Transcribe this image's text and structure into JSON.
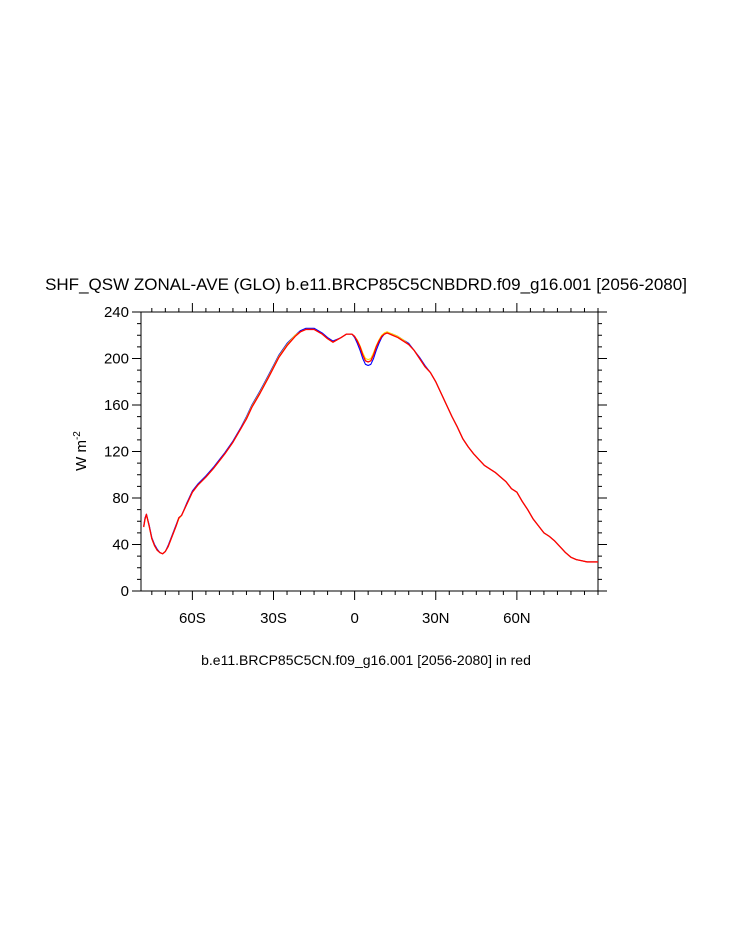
{
  "chart_data": {
    "type": "line",
    "title": "SHF_QSW ZONAL-AVE (GLO) b.e11.BRCP85C5CNBDRD.f09_g16.001 [2056-2080]",
    "ylabel": "W m",
    "ylabel_superscript": "-2",
    "caption": "b.e11.BRCP85C5CN.f09_g16.001 [2056-2080] in red",
    "xlim": [
      -79,
      90
    ],
    "ylim": [
      0,
      240
    ],
    "y_ticks": [
      0,
      40,
      80,
      120,
      160,
      200,
      240
    ],
    "y_tick_labels": [
      "0",
      "40",
      "80",
      "120",
      "160",
      "200",
      "240"
    ],
    "x_ticks": [
      -60,
      -30,
      0,
      30,
      60
    ],
    "x_tick_labels": [
      "60S",
      "30S",
      "0",
      "30N",
      "60N"
    ],
    "grid": false,
    "colors": {
      "reference": "#ff0000",
      "case": "#0000ff",
      "diff": "#ffd700",
      "axis": "#000000"
    },
    "series": [
      {
        "color": "#ff0000",
        "x": [
          -78,
          -77.5,
          -77,
          -76,
          -75,
          -74,
          -73,
          -72,
          -71,
          -70,
          -69,
          -68,
          -67,
          -66,
          -65,
          -64,
          -62,
          -60,
          -58,
          -55,
          -52,
          -50,
          -48,
          -45,
          -42,
          -40,
          -38,
          -35,
          -32,
          -30,
          -28,
          -25,
          -22,
          -20,
          -18,
          -15,
          -12,
          -10,
          -8,
          -5,
          -3,
          -1,
          0,
          1,
          2,
          3,
          4,
          5,
          6,
          7,
          8,
          9,
          10,
          11,
          12,
          14,
          16,
          18,
          20,
          22,
          24,
          26,
          28,
          30,
          32,
          34,
          36,
          38,
          40,
          42,
          44,
          46,
          48,
          50,
          52,
          54,
          56,
          58,
          60,
          62,
          64,
          66,
          68,
          70,
          72,
          74,
          76,
          78,
          80,
          82,
          84,
          86,
          88,
          90
        ],
        "y": [
          55,
          62,
          66,
          56,
          45,
          39,
          35,
          33,
          32,
          34,
          38,
          44,
          50,
          56,
          63,
          65,
          75,
          85,
          91,
          98,
          106,
          112,
          118,
          128,
          140,
          148,
          158,
          170,
          183,
          192,
          201,
          211,
          219,
          223,
          225,
          225,
          221,
          217,
          214,
          218,
          221,
          221,
          219,
          215,
          210,
          203,
          198,
          197,
          198,
          203,
          210,
          215,
          219,
          221,
          222,
          220,
          218,
          215,
          212,
          207,
          200,
          193,
          188,
          180,
          170,
          160,
          150,
          141,
          131,
          124,
          118,
          113,
          108,
          105,
          102,
          98,
          94,
          88,
          85,
          77,
          70,
          62,
          56,
          50,
          47,
          43,
          38,
          33,
          29,
          27,
          26,
          25,
          25,
          25
        ]
      },
      {
        "color": "#0000ff",
        "x": [
          -78,
          -77.5,
          -77,
          -76,
          -75,
          -74,
          -73,
          -72,
          -71,
          -70,
          -69,
          -68,
          -67,
          -66,
          -65,
          -64,
          -62,
          -60,
          -58,
          -55,
          -52,
          -50,
          -48,
          -45,
          -42,
          -40,
          -38,
          -35,
          -32,
          -30,
          -28,
          -25,
          -22,
          -20,
          -18,
          -15,
          -12,
          -10,
          -8,
          -5,
          -3,
          -1,
          0,
          1,
          2,
          3,
          4,
          5,
          6,
          7,
          8,
          9,
          10,
          11,
          12,
          14,
          16,
          18,
          20,
          22,
          24,
          26,
          28,
          30,
          32,
          34,
          36,
          38,
          40,
          42,
          44,
          46,
          48,
          50,
          52,
          54,
          56,
          58,
          60,
          62,
          64,
          66,
          68,
          70,
          72,
          74,
          76,
          78,
          80,
          82,
          84,
          86,
          88,
          90
        ],
        "y": [
          56,
          63,
          66,
          57,
          46,
          40,
          36,
          33,
          32,
          34,
          39,
          45,
          51,
          57,
          63,
          65,
          76,
          86,
          92,
          99,
          107,
          113,
          119,
          129,
          141,
          150,
          160,
          172,
          185,
          194,
          203,
          213,
          220,
          224,
          226,
          226,
          222,
          218,
          215,
          218,
          221,
          221,
          218,
          213,
          207,
          200,
          195,
          194,
          195,
          200,
          207,
          213,
          218,
          221,
          222,
          221,
          219,
          216,
          213,
          207,
          201,
          194,
          188,
          180,
          170,
          160,
          150,
          141,
          131,
          124,
          118,
          113,
          108,
          105,
          102,
          98,
          94,
          88,
          85,
          77,
          70,
          62,
          56,
          50,
          47,
          43,
          38,
          33,
          29,
          27,
          26,
          25,
          25,
          25
        ]
      },
      {
        "color": "#ffd700",
        "x": [
          -78,
          -77.5,
          -77,
          -76,
          -75,
          -74,
          -73,
          -72,
          -71,
          -70,
          -69,
          -68,
          -67,
          -66,
          -65,
          -64,
          -62,
          -60,
          -58,
          -55,
          -52,
          -50,
          -48,
          -45,
          -42,
          -40,
          -38,
          -35,
          -32,
          -30,
          -28,
          -25,
          -22,
          -20,
          -18,
          -15,
          -12,
          -10,
          -8,
          -5,
          -3,
          -1,
          0,
          1,
          2,
          3,
          4,
          5,
          6,
          7,
          8,
          9,
          10,
          11,
          12,
          14,
          16,
          18,
          20,
          22,
          24,
          26,
          28,
          30,
          32,
          34,
          36,
          38,
          40,
          42,
          44,
          46,
          48,
          50,
          52,
          54,
          56,
          58,
          60,
          62,
          64,
          66,
          68,
          70,
          72,
          74,
          76,
          78,
          80,
          82,
          84,
          86,
          88,
          90
        ],
        "y": [
          55,
          62,
          65,
          56,
          45,
          39,
          35,
          33,
          32,
          34,
          38,
          44,
          50,
          56,
          62,
          65,
          75,
          85,
          91,
          98,
          106,
          112,
          118,
          128,
          140,
          149,
          159,
          171,
          184,
          193,
          202,
          212,
          220,
          223,
          225,
          225,
          221,
          217,
          214,
          218,
          221,
          221,
          219,
          216,
          211,
          205,
          200,
          199,
          200,
          205,
          211,
          216,
          220,
          222,
          223,
          221,
          219,
          216,
          212,
          207,
          200,
          193,
          188,
          180,
          170,
          160,
          150,
          141,
          131,
          124,
          118,
          113,
          108,
          105,
          102,
          98,
          94,
          88,
          85,
          77,
          70,
          62,
          56,
          50,
          47,
          43,
          38,
          33,
          29,
          27,
          26,
          25,
          25,
          25
        ]
      }
    ]
  }
}
